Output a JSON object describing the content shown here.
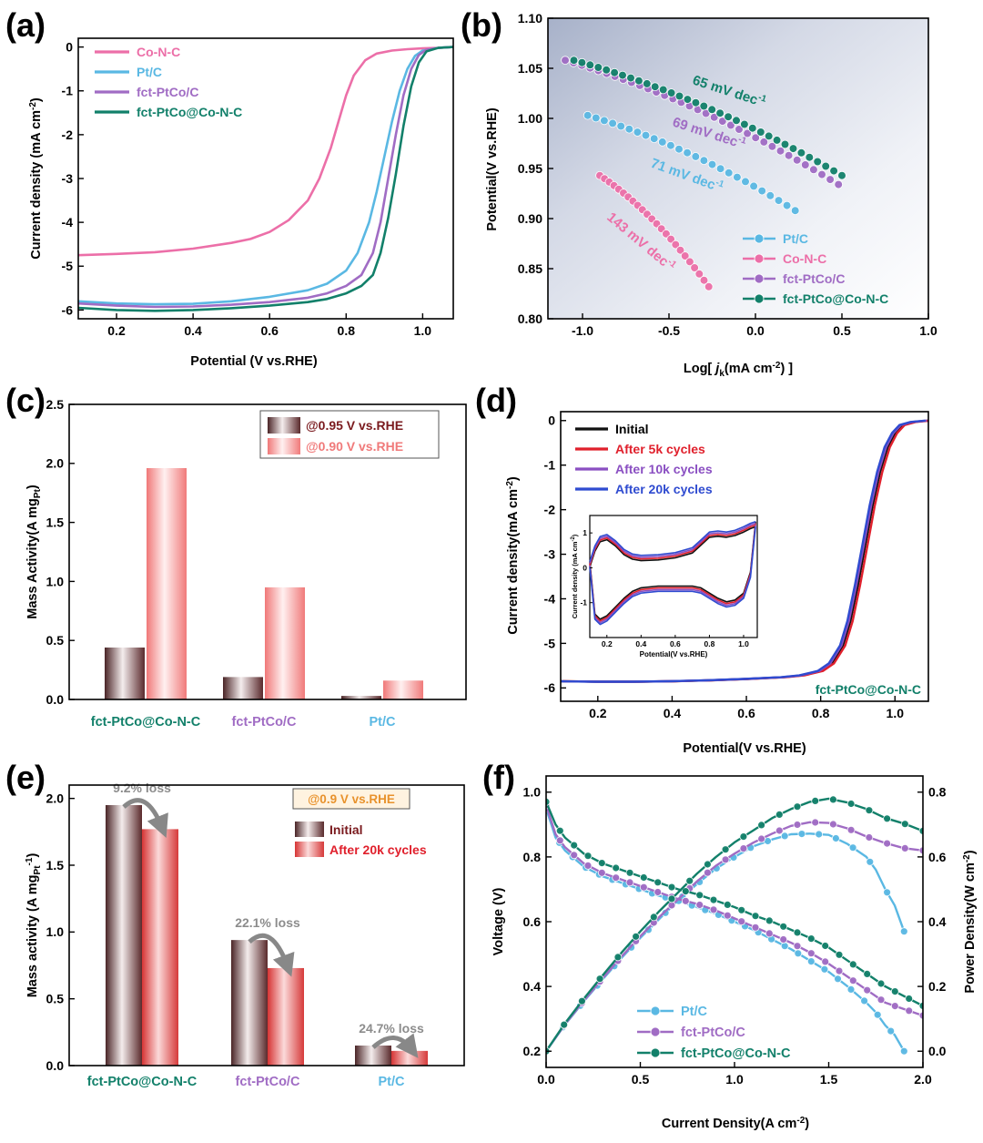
{
  "colors": {
    "pink": "#ec6fa8",
    "lightblue": "#5ab8e3",
    "purple": "#a06cc4",
    "teal": "#12806a",
    "black": "#111111",
    "red": "#e0202c",
    "violet": "#8a4fc2",
    "blue": "#2f4bd0",
    "barDark": "#6e3a3c",
    "barPink": "#f08f8f",
    "barRed": "#e04848",
    "axisGrayText": "#8c8c8c",
    "orange": "#e8922c"
  },
  "chart_data": [
    {
      "panel": "(a)",
      "type": "line",
      "xlabel": "Potential (V vs.RHE)",
      "ylabel": "Current density (mA cm",
      "ylabel_sup": "-2",
      "ylabel_end": ")",
      "xlim": [
        0.1,
        1.08
      ],
      "ylim": [
        -6.2,
        0.2
      ],
      "xticks": [
        "0.2",
        "0.4",
        "0.6",
        "0.8",
        "1.0"
      ],
      "xtick_values": [
        0.2,
        0.4,
        0.6,
        0.8,
        1.0
      ],
      "yticks": [
        "0",
        "-1",
        "-2",
        "-3",
        "-4",
        "-5",
        "-6"
      ],
      "ytick_values": [
        0,
        -1,
        -2,
        -3,
        -4,
        -5,
        -6
      ],
      "legend_position": "top-left",
      "series": [
        {
          "name": "Co-N-C",
          "color": "pink",
          "x": [
            0.1,
            0.2,
            0.3,
            0.4,
            0.5,
            0.55,
            0.6,
            0.65,
            0.7,
            0.73,
            0.76,
            0.78,
            0.8,
            0.82,
            0.85,
            0.88,
            0.92,
            0.96,
            1.0,
            1.04,
            1.08
          ],
          "y": [
            -4.75,
            -4.72,
            -4.68,
            -4.6,
            -4.47,
            -4.38,
            -4.22,
            -3.95,
            -3.5,
            -3.0,
            -2.3,
            -1.7,
            -1.1,
            -0.65,
            -0.3,
            -0.15,
            -0.08,
            -0.05,
            -0.03,
            -0.02,
            0.0
          ]
        },
        {
          "name": "Pt/C",
          "color": "lightblue",
          "x": [
            0.1,
            0.2,
            0.3,
            0.4,
            0.5,
            0.6,
            0.7,
            0.75,
            0.8,
            0.83,
            0.86,
            0.88,
            0.9,
            0.92,
            0.94,
            0.96,
            0.98,
            1.0,
            1.04,
            1.08
          ],
          "y": [
            -5.8,
            -5.85,
            -5.87,
            -5.86,
            -5.8,
            -5.7,
            -5.55,
            -5.4,
            -5.1,
            -4.7,
            -4.0,
            -3.3,
            -2.5,
            -1.7,
            -1.0,
            -0.5,
            -0.2,
            -0.08,
            -0.02,
            0.0
          ]
        },
        {
          "name": "fct-PtCo/C",
          "color": "purple",
          "x": [
            0.1,
            0.2,
            0.3,
            0.4,
            0.5,
            0.6,
            0.7,
            0.75,
            0.8,
            0.84,
            0.87,
            0.89,
            0.91,
            0.93,
            0.95,
            0.97,
            0.99,
            1.01,
            1.04,
            1.08
          ],
          "y": [
            -5.85,
            -5.9,
            -5.93,
            -5.92,
            -5.88,
            -5.82,
            -5.72,
            -5.62,
            -5.45,
            -5.2,
            -4.7,
            -4.0,
            -3.0,
            -2.0,
            -1.1,
            -0.5,
            -0.18,
            -0.06,
            -0.02,
            0.0
          ]
        },
        {
          "name": "fct-PtCo@Co-N-C",
          "color": "teal",
          "x": [
            0.1,
            0.2,
            0.3,
            0.4,
            0.5,
            0.6,
            0.7,
            0.75,
            0.8,
            0.84,
            0.87,
            0.89,
            0.91,
            0.93,
            0.95,
            0.97,
            0.99,
            1.01,
            1.04,
            1.08
          ],
          "y": [
            -5.95,
            -6.0,
            -6.02,
            -6.0,
            -5.96,
            -5.9,
            -5.82,
            -5.75,
            -5.62,
            -5.45,
            -5.2,
            -4.7,
            -3.9,
            -2.9,
            -1.8,
            -0.9,
            -0.35,
            -0.1,
            -0.02,
            0.0
          ]
        }
      ]
    },
    {
      "panel": "(b)",
      "type": "scatter",
      "xlabel_pre": "Log[ ",
      "xlabel_j": "j",
      "xlabel_sub": "k",
      "xlabel_post": "(mA cm",
      "xlabel_sup": "-2",
      "xlabel_end": ") ]",
      "ylabel": "Potential(V vs.RHE)",
      "xlim": [
        -1.2,
        1.0
      ],
      "ylim": [
        0.8,
        1.1
      ],
      "xticks": [
        "-1.0",
        "-0.5",
        "0.0",
        "0.5",
        "1.0"
      ],
      "xtick_values": [
        -1.0,
        -0.5,
        0.0,
        0.5,
        1.0
      ],
      "yticks": [
        "0.80",
        "0.85",
        "0.90",
        "0.95",
        "1.00",
        "1.05",
        "1.10"
      ],
      "ytick_values": [
        0.8,
        0.85,
        0.9,
        0.95,
        1.0,
        1.05,
        1.1
      ],
      "legend_position": "bottom-right",
      "series": [
        {
          "name": "Pt/C",
          "color": "lightblue",
          "x0": -0.97,
          "x1": 0.23,
          "y0": 1.003,
          "y1": 0.908,
          "n": 26,
          "annotation": "71 mV dec",
          "annotation_sup": "-1"
        },
        {
          "name": "Co-N-C",
          "color": "pink",
          "x0": -0.9,
          "x1": -0.27,
          "y0": 0.943,
          "y1": 0.832,
          "n": 24,
          "annotation": "143 mV dec",
          "annotation_sup": "-1"
        },
        {
          "name": "fct-PtCo/C",
          "color": "purple",
          "x0": -1.1,
          "x1": 0.48,
          "y0": 1.058,
          "y1": 0.934,
          "n": 34,
          "annotation": "69 mV dec",
          "annotation_sup": "-1"
        },
        {
          "name": "fct-PtCo@Co-N-C",
          "color": "teal",
          "x0": -1.05,
          "x1": 0.5,
          "y0": 1.058,
          "y1": 0.943,
          "n": 34,
          "annotation": "65 mV dec",
          "annotation_sup": "-1"
        }
      ]
    },
    {
      "panel": "(c)",
      "type": "bar",
      "ylabel": "Mass Activity(A mg",
      "ylabel_sub": "Pt",
      "ylabel_end": ")",
      "ylim": [
        0,
        2.5
      ],
      "yticks": [
        "0.0",
        "0.5",
        "1.0",
        "1.5",
        "2.0",
        "2.5"
      ],
      "ytick_values": [
        0,
        0.5,
        1.0,
        1.5,
        2.0,
        2.5
      ],
      "categories": [
        "fct-PtCo@Co-N-C",
        "fct-PtCo/C",
        "Pt/C"
      ],
      "category_colors": [
        "teal",
        "purple",
        "lightblue"
      ],
      "legend_position": "top-right",
      "series": [
        {
          "name": "@0.95 V vs.RHE",
          "color": "barDark",
          "values": [
            0.44,
            0.19,
            0.03
          ]
        },
        {
          "name": "@0.90 V vs.RHE",
          "color": "barPink",
          "values": [
            1.96,
            0.95,
            0.16
          ]
        }
      ]
    },
    {
      "panel": "(d)",
      "type": "line",
      "xlabel": "Potential(V vs.RHE)",
      "ylabel": "Current density(mA cm",
      "ylabel_sup": "-2",
      "ylabel_end": ")",
      "xlim": [
        0.1,
        1.09
      ],
      "ylim": [
        -6.3,
        0.2
      ],
      "xticks": [
        "0.2",
        "0.4",
        "0.6",
        "0.8",
        "1.0"
      ],
      "xtick_values": [
        0.2,
        0.4,
        0.6,
        0.8,
        1.0
      ],
      "yticks": [
        "0",
        "-1",
        "-2",
        "-3",
        "-4",
        "-5",
        "-6"
      ],
      "ytick_values": [
        0,
        -1,
        -2,
        -3,
        -4,
        -5,
        -6
      ],
      "annotation": "fct-PtCo@Co-N-C",
      "legend_position": "top-left",
      "series": [
        {
          "name": "Initial",
          "color": "black",
          "shift": 0.0
        },
        {
          "name": "After 5k cycles",
          "color": "red",
          "shift": 0.006
        },
        {
          "name": "After 10k cycles",
          "color": "violet",
          "shift": -0.004
        },
        {
          "name": "After 20k cycles",
          "color": "blue",
          "shift": -0.008
        }
      ],
      "base_curve": {
        "x": [
          0.1,
          0.2,
          0.3,
          0.4,
          0.5,
          0.6,
          0.7,
          0.75,
          0.8,
          0.83,
          0.86,
          0.88,
          0.9,
          0.92,
          0.94,
          0.96,
          0.98,
          1.0,
          1.02,
          1.05,
          1.09
        ],
        "y": [
          -5.85,
          -5.86,
          -5.86,
          -5.85,
          -5.83,
          -5.8,
          -5.76,
          -5.72,
          -5.62,
          -5.45,
          -5.05,
          -4.5,
          -3.7,
          -2.8,
          -1.9,
          -1.15,
          -0.6,
          -0.28,
          -0.1,
          -0.03,
          0.0
        ]
      },
      "inset": {
        "xlabel": "Potential(V vs.RHE)",
        "ylabel": "Current density (mA cm",
        "ylabel_sup": "-2",
        "ylabel_end": ")",
        "xlim": [
          0.1,
          1.08
        ],
        "ylim": [
          -2.0,
          1.5
        ],
        "xticks": [
          "0.2",
          "0.4",
          "0.6",
          "0.8",
          "1.0"
        ],
        "xtick_values": [
          0.2,
          0.4,
          0.6,
          0.8,
          1.0
        ],
        "yticks": [
          "1",
          "0",
          "-1"
        ],
        "ytick_values": [
          1,
          0,
          -1
        ],
        "upper_x": [
          0.1,
          0.13,
          0.16,
          0.2,
          0.25,
          0.3,
          0.35,
          0.4,
          0.5,
          0.6,
          0.7,
          0.75,
          0.8,
          0.85,
          0.9,
          0.95,
          1.0,
          1.04,
          1.07
        ],
        "upper_y": [
          0.1,
          0.55,
          0.82,
          0.88,
          0.7,
          0.45,
          0.32,
          0.28,
          0.3,
          0.36,
          0.5,
          0.72,
          0.95,
          0.98,
          0.95,
          1.0,
          1.1,
          1.2,
          1.25
        ],
        "lower_x": [
          1.07,
          1.04,
          1.0,
          0.95,
          0.9,
          0.85,
          0.8,
          0.75,
          0.7,
          0.6,
          0.5,
          0.4,
          0.35,
          0.3,
          0.25,
          0.2,
          0.16,
          0.13,
          0.1
        ],
        "lower_y": [
          1.25,
          -0.2,
          -0.8,
          -1.0,
          -1.05,
          -0.95,
          -0.8,
          -0.65,
          -0.6,
          -0.6,
          -0.6,
          -0.65,
          -0.75,
          -0.95,
          -1.2,
          -1.45,
          -1.55,
          -1.4,
          0.1
        ]
      }
    },
    {
      "panel": "(e)",
      "type": "bar",
      "ylabel": "Mass activity (A mg",
      "ylabel_sub": "Pt",
      "ylabel_sup": "-1",
      "ylabel_end": ")",
      "ylim": [
        0,
        2.1
      ],
      "yticks": [
        "0.0",
        "0.5",
        "1.0",
        "1.5",
        "2.0"
      ],
      "ytick_values": [
        0,
        0.5,
        1.0,
        1.5,
        2.0
      ],
      "categories": [
        "fct-PtCo@Co-N-C",
        "fct-PtCo/C",
        "Pt/C"
      ],
      "category_colors": [
        "teal",
        "purple",
        "lightblue"
      ],
      "legend_title": "@0.9 V vs.RHE",
      "legend_position": "top-right",
      "annotations": [
        "9.2% loss",
        "22.1% loss",
        "24.7% loss"
      ],
      "series": [
        {
          "name": "Initial",
          "color": "barDark",
          "values": [
            1.95,
            0.94,
            0.15
          ]
        },
        {
          "name": "After 20k cycles",
          "color": "barRed",
          "values": [
            1.77,
            0.73,
            0.11
          ]
        }
      ]
    },
    {
      "panel": "(f)",
      "type": "line",
      "xlabel": "Current Density(A cm",
      "xlabel_sup": "-2",
      "xlabel_end": ")",
      "ylabel": "Voltage (V)",
      "ylabel_right": "Power Density(W cm",
      "ylabel_right_sup": "-2",
      "ylabel_right_end": ")",
      "xlim": [
        0,
        2.0
      ],
      "ylim": [
        0.15,
        1.05
      ],
      "ylim_right": [
        -0.05,
        0.85
      ],
      "xticks": [
        "0.0",
        "0.5",
        "1.0",
        "1.5",
        "2.0"
      ],
      "xtick_values": [
        0,
        0.5,
        1.0,
        1.5,
        2.0
      ],
      "yticks": [
        "0.2",
        "0.4",
        "0.6",
        "0.8",
        "1.0"
      ],
      "ytick_values": [
        0.2,
        0.4,
        0.6,
        0.8,
        1.0
      ],
      "yticks_right": [
        "0.0",
        "0.2",
        "0.4",
        "0.6",
        "0.8"
      ],
      "ytick_values_right": [
        0,
        0.2,
        0.4,
        0.6,
        0.8
      ],
      "legend_position": "bottom-left",
      "series": [
        {
          "name": "Pt/C",
          "color": "lightblue",
          "voltage_x": [
            0,
            0.05,
            0.1,
            0.2,
            0.3,
            0.4,
            0.5,
            0.6,
            0.7,
            0.8,
            0.9,
            1.0,
            1.1,
            1.2,
            1.3,
            1.4,
            1.5,
            1.6,
            1.7,
            1.75,
            1.8,
            1.85,
            1.9
          ],
          "voltage_y": [
            0.95,
            0.86,
            0.82,
            0.77,
            0.74,
            0.72,
            0.7,
            0.68,
            0.665,
            0.645,
            0.625,
            0.6,
            0.575,
            0.545,
            0.515,
            0.48,
            0.445,
            0.4,
            0.35,
            0.32,
            0.28,
            0.25,
            0.2
          ],
          "power_x": [
            0,
            0.1,
            0.2,
            0.3,
            0.4,
            0.5,
            0.6,
            0.7,
            0.8,
            0.9,
            1.0,
            1.1,
            1.2,
            1.3,
            1.4,
            1.5,
            1.6,
            1.7,
            1.75,
            1.8,
            1.85,
            1.9
          ],
          "power_y": [
            0.0,
            0.082,
            0.154,
            0.222,
            0.288,
            0.35,
            0.408,
            0.466,
            0.516,
            0.563,
            0.6,
            0.633,
            0.654,
            0.67,
            0.672,
            0.668,
            0.64,
            0.6,
            0.56,
            0.5,
            0.45,
            0.37
          ]
        },
        {
          "name": "fct-PtCo/C",
          "color": "purple",
          "voltage_x": [
            0,
            0.05,
            0.1,
            0.2,
            0.3,
            0.4,
            0.5,
            0.6,
            0.7,
            0.8,
            0.9,
            1.0,
            1.1,
            1.2,
            1.3,
            1.4,
            1.5,
            1.6,
            1.7,
            1.8,
            1.9,
            2.0
          ],
          "voltage_y": [
            0.96,
            0.87,
            0.83,
            0.78,
            0.75,
            0.73,
            0.71,
            0.69,
            0.67,
            0.655,
            0.635,
            0.61,
            0.585,
            0.56,
            0.535,
            0.505,
            0.47,
            0.43,
            0.39,
            0.35,
            0.33,
            0.31
          ],
          "power_x": [
            0,
            0.1,
            0.2,
            0.3,
            0.4,
            0.5,
            0.6,
            0.7,
            0.8,
            0.9,
            1.0,
            1.1,
            1.2,
            1.3,
            1.4,
            1.5,
            1.6,
            1.7,
            1.8,
            1.9,
            2.0
          ],
          "power_y": [
            0.0,
            0.083,
            0.156,
            0.225,
            0.292,
            0.355,
            0.414,
            0.469,
            0.524,
            0.572,
            0.61,
            0.644,
            0.672,
            0.696,
            0.707,
            0.705,
            0.688,
            0.663,
            0.643,
            0.627,
            0.62
          ]
        },
        {
          "name": "fct-PtCo@Co-N-C",
          "color": "teal",
          "voltage_x": [
            0,
            0.05,
            0.1,
            0.2,
            0.3,
            0.4,
            0.5,
            0.6,
            0.7,
            0.8,
            0.9,
            1.0,
            1.1,
            1.2,
            1.3,
            1.4,
            1.5,
            1.6,
            1.7,
            1.8,
            1.9,
            2.0
          ],
          "voltage_y": [
            0.97,
            0.9,
            0.86,
            0.81,
            0.78,
            0.76,
            0.74,
            0.72,
            0.7,
            0.685,
            0.665,
            0.645,
            0.62,
            0.6,
            0.575,
            0.55,
            0.52,
            0.48,
            0.44,
            0.4,
            0.37,
            0.34
          ],
          "power_x": [
            0,
            0.1,
            0.2,
            0.3,
            0.4,
            0.5,
            0.6,
            0.7,
            0.8,
            0.9,
            1.0,
            1.1,
            1.2,
            1.3,
            1.4,
            1.5,
            1.6,
            1.7,
            1.8,
            1.9,
            2.0
          ],
          "power_y": [
            0.0,
            0.086,
            0.162,
            0.234,
            0.304,
            0.37,
            0.432,
            0.49,
            0.548,
            0.599,
            0.645,
            0.682,
            0.72,
            0.748,
            0.77,
            0.78,
            0.768,
            0.748,
            0.72,
            0.703,
            0.68
          ]
        }
      ]
    }
  ]
}
